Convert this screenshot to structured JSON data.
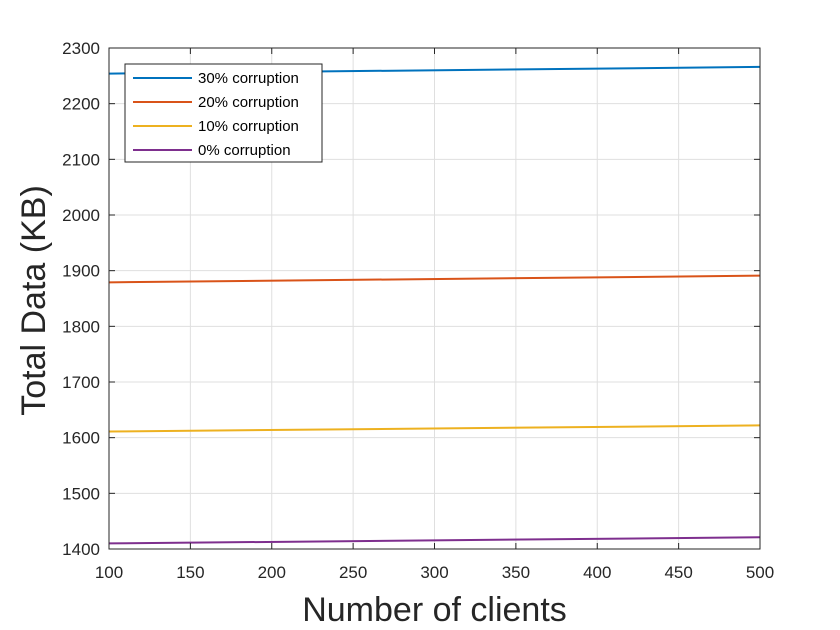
{
  "chart_data": {
    "type": "line",
    "title": "",
    "xlabel": "Number of clients",
    "ylabel": "Total Data (KB)",
    "xlim": [
      100,
      500
    ],
    "ylim": [
      1400,
      2300
    ],
    "xticks": [
      100,
      150,
      200,
      250,
      300,
      350,
      400,
      450,
      500
    ],
    "yticks": [
      1400,
      1500,
      1600,
      1700,
      1800,
      1900,
      2000,
      2100,
      2200,
      2300
    ],
    "grid": true,
    "legend_position": "top-left",
    "series": [
      {
        "name": "30% corruption",
        "color": "#0072BD",
        "x": [
          100,
          500
        ],
        "y": [
          2254,
          2266
        ]
      },
      {
        "name": "20% corruption",
        "color": "#D95319",
        "x": [
          100,
          500
        ],
        "y": [
          1879,
          1891
        ]
      },
      {
        "name": "10% corruption",
        "color": "#EDB120",
        "x": [
          100,
          500
        ],
        "y": [
          1611,
          1622
        ]
      },
      {
        "name": "0% corruption",
        "color": "#7E2F8E",
        "x": [
          100,
          500
        ],
        "y": [
          1410,
          1421
        ]
      }
    ]
  }
}
